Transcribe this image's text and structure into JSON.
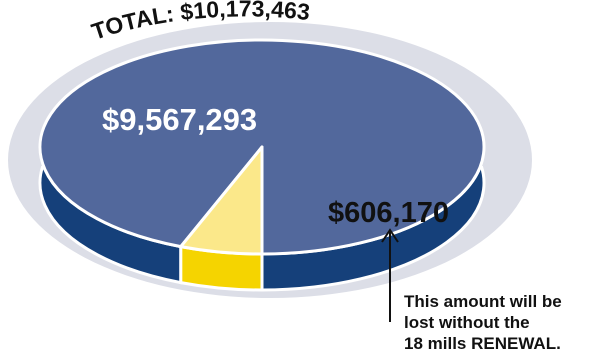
{
  "chart_data": {
    "type": "pie",
    "title": "TOTAL: $10,173,463",
    "slices": [
      {
        "name": "",
        "value": 9567293,
        "label": "$9,567,293",
        "color": "#52689c",
        "side_color": "#15407a"
      },
      {
        "name": "",
        "value": 606170,
        "label": "$606,170",
        "color": "#fbe88a",
        "side_color": "#f5d400"
      }
    ],
    "annotation_lines": [
      "This amount will be",
      "lost without the",
      "18 mills RENEWAL."
    ],
    "colors": {
      "ring": "#dcdee7",
      "label_light": "#ffffff",
      "label_dark": "#111111"
    }
  }
}
